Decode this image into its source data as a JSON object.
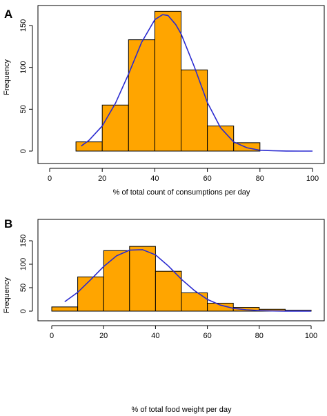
{
  "colors": {
    "bar_fill": "#ffa500",
    "curve": "#2a2ad0"
  },
  "chart_data": [
    {
      "type": "bar",
      "panel": "A",
      "title": "",
      "xlabel": "% of total count of consumptions per day",
      "ylabel": "Frequency",
      "xlim": [
        0,
        100
      ],
      "ylim": [
        0,
        170
      ],
      "xticks": [
        0,
        20,
        40,
        60,
        80,
        100
      ],
      "yticks": [
        0,
        50,
        100,
        150
      ],
      "bins": [
        {
          "x0": 10,
          "x1": 20,
          "value": 11
        },
        {
          "x0": 20,
          "x1": 30,
          "value": 55
        },
        {
          "x0": 30,
          "x1": 40,
          "value": 133
        },
        {
          "x0": 40,
          "x1": 50,
          "value": 167
        },
        {
          "x0": 50,
          "x1": 60,
          "value": 97
        },
        {
          "x0": 60,
          "x1": 70,
          "value": 30
        },
        {
          "x0": 70,
          "x1": 80,
          "value": 10
        }
      ],
      "curve": {
        "x": [
          12,
          15,
          20,
          25,
          30,
          35,
          40,
          43,
          45,
          48,
          50,
          55,
          60,
          65,
          70,
          75,
          80,
          85,
          90,
          95,
          100
        ],
        "y": [
          6,
          13,
          30,
          57,
          92,
          130,
          157,
          163,
          162,
          151,
          140,
          101,
          58,
          28,
          11,
          4,
          1,
          0.4,
          0.1,
          0,
          0
        ]
      }
    },
    {
      "type": "bar",
      "panel": "B",
      "title": "",
      "xlabel": "% of total food weight per day",
      "ylabel": "Frequency",
      "xlim": [
        0,
        100
      ],
      "ylim": [
        0,
        160
      ],
      "xticks": [
        0,
        20,
        40,
        60,
        80,
        100
      ],
      "yticks": [
        0,
        50,
        100,
        150
      ],
      "bins": [
        {
          "x0": 0,
          "x1": 10,
          "value": 9
        },
        {
          "x0": 10,
          "x1": 20,
          "value": 73
        },
        {
          "x0": 20,
          "x1": 30,
          "value": 129
        },
        {
          "x0": 30,
          "x1": 40,
          "value": 138
        },
        {
          "x0": 40,
          "x1": 50,
          "value": 85
        },
        {
          "x0": 50,
          "x1": 60,
          "value": 39
        },
        {
          "x0": 60,
          "x1": 70,
          "value": 17
        },
        {
          "x0": 70,
          "x1": 80,
          "value": 8
        },
        {
          "x0": 80,
          "x1": 90,
          "value": 4
        },
        {
          "x0": 90,
          "x1": 100,
          "value": 2
        }
      ],
      "curve": {
        "x": [
          5,
          10,
          15,
          20,
          25,
          30,
          35,
          40,
          45,
          50,
          55,
          60,
          65,
          70,
          75,
          80,
          85,
          90,
          95,
          100
        ],
        "y": [
          20,
          40,
          67,
          95,
          118,
          130,
          131,
          120,
          96,
          68,
          44,
          25,
          13,
          6,
          3,
          1.2,
          0.5,
          0.2,
          0.1,
          0
        ]
      }
    }
  ]
}
